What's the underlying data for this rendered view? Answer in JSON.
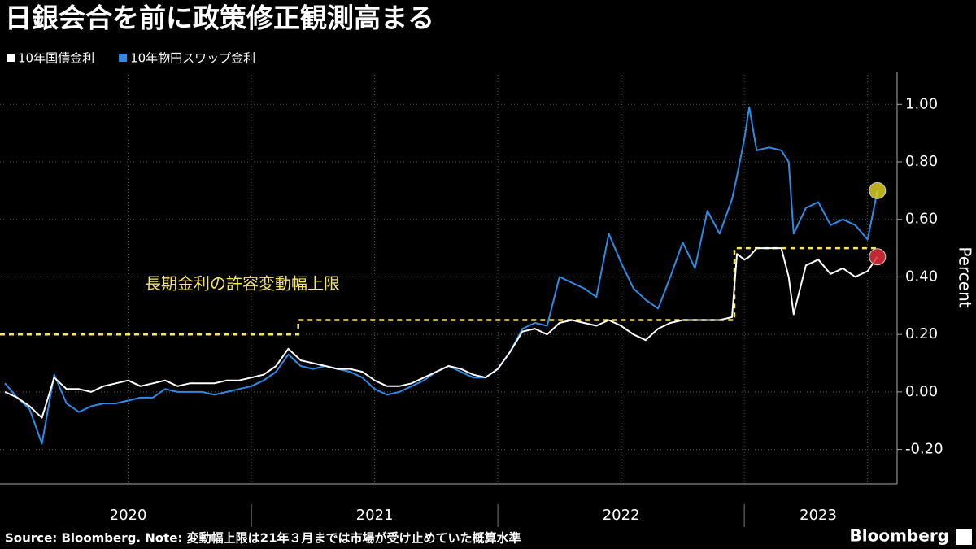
{
  "chart_data": {
    "type": "line",
    "title": "日銀会合を前に政策修正観測高まる",
    "y_label": "Percent",
    "source": "Source: Bloomberg. Note: 変動幅上限は21年３月までは市場が受け止めていた概算水準",
    "brand": "Bloomberg",
    "xlim": [
      2019.98,
      2023.61
    ],
    "ylim": [
      -0.32,
      1.114
    ],
    "xticks": [
      {
        "value": 2020.5,
        "label": "2020"
      },
      {
        "value": 2021.5,
        "label": "2021"
      },
      {
        "value": 2022.5,
        "label": "2022"
      },
      {
        "value": 2023.3,
        "label": "2023"
      }
    ],
    "year_dividers": [
      2021,
      2022,
      2023
    ],
    "xgrid": [
      2020.5,
      2021,
      2021.5,
      2022,
      2022.5,
      2023,
      2023.5
    ],
    "yticks": [
      {
        "value": -0.2,
        "label": "-0.20"
      },
      {
        "value": 0,
        "label": "0.00"
      },
      {
        "value": 0.2,
        "label": "0.20"
      },
      {
        "value": 0.4,
        "label": "0.40"
      },
      {
        "value": 0.6,
        "label": "0.60"
      },
      {
        "value": 0.8,
        "label": "0.80"
      },
      {
        "value": 1,
        "label": "1.00"
      }
    ],
    "grid": true,
    "x": [
      2020,
      2020.05,
      2020.1,
      2020.15,
      2020.2,
      2020.25,
      2020.3,
      2020.35,
      2020.4,
      2020.45,
      2020.5,
      2020.55,
      2020.6,
      2020.65,
      2020.7,
      2020.75,
      2020.8,
      2020.85,
      2020.9,
      2020.95,
      2021,
      2021.05,
      2021.1,
      2021.15,
      2021.2,
      2021.25,
      2021.3,
      2021.35,
      2021.4,
      2021.45,
      2021.5,
      2021.55,
      2021.6,
      2021.65,
      2021.7,
      2021.75,
      2021.8,
      2021.85,
      2021.9,
      2021.95,
      2022,
      2022.05,
      2022.1,
      2022.15,
      2022.2,
      2022.25,
      2022.3,
      2022.35,
      2022.4,
      2022.45,
      2022.5,
      2022.55,
      2022.6,
      2022.65,
      2022.7,
      2022.75,
      2022.8,
      2022.85,
      2022.9,
      2022.95,
      2022.97,
      2023,
      2023.02,
      2023.05,
      2023.1,
      2023.15,
      2023.18,
      2023.2,
      2023.25,
      2023.3,
      2023.35,
      2023.4,
      2023.45,
      2023.5,
      2023.54
    ],
    "series": [
      {
        "name": "10年国債金利",
        "color": "#ffffff",
        "end_marker_color": "#e0303c",
        "values": [
          0,
          -0.02,
          -0.05,
          -0.09,
          0.05,
          0.01,
          0.01,
          0,
          0.02,
          0.03,
          0.04,
          0.02,
          0.03,
          0.04,
          0.02,
          0.03,
          0.03,
          0.03,
          0.04,
          0.04,
          0.05,
          0.06,
          0.09,
          0.15,
          0.11,
          0.1,
          0.09,
          0.08,
          0.08,
          0.07,
          0.04,
          0.02,
          0.02,
          0.03,
          0.05,
          0.07,
          0.09,
          0.08,
          0.06,
          0.05,
          0.08,
          0.14,
          0.21,
          0.22,
          0.2,
          0.24,
          0.25,
          0.24,
          0.23,
          0.25,
          0.23,
          0.2,
          0.18,
          0.22,
          0.24,
          0.25,
          0.25,
          0.25,
          0.25,
          0.26,
          0.48,
          0.46,
          0.47,
          0.5,
          0.5,
          0.5,
          0.4,
          0.27,
          0.44,
          0.46,
          0.41,
          0.43,
          0.4,
          0.42,
          0.47
        ]
      },
      {
        "name": "10年物円スワップ金利",
        "color": "#2f8ae6",
        "end_marker_color": "#d9cf1e",
        "values": [
          0.03,
          -0.02,
          -0.06,
          -0.18,
          0.06,
          -0.04,
          -0.07,
          -0.05,
          -0.04,
          -0.04,
          -0.03,
          -0.02,
          -0.02,
          0.01,
          0,
          0,
          0,
          -0.01,
          0,
          0.01,
          0.02,
          0.04,
          0.07,
          0.13,
          0.09,
          0.08,
          0.09,
          0.08,
          0.07,
          0.05,
          0.01,
          -0.01,
          0,
          0.02,
          0.04,
          0.07,
          0.09,
          0.07,
          0.05,
          0.05,
          0.08,
          0.14,
          0.22,
          0.24,
          0.23,
          0.4,
          0.38,
          0.36,
          0.33,
          0.55,
          0.45,
          0.36,
          0.32,
          0.29,
          0.4,
          0.52,
          0.43,
          0.63,
          0.55,
          0.67,
          0.75,
          0.88,
          0.99,
          0.84,
          0.85,
          0.84,
          0.8,
          0.55,
          0.64,
          0.66,
          0.58,
          0.6,
          0.58,
          0.53,
          0.7
        ]
      }
    ],
    "cap_line": {
      "name": "長期金利の許容変動幅上限",
      "color": "#f5e663",
      "x": [
        2019.98,
        2021.19,
        2021.19,
        2022.96,
        2022.96,
        2023.55
      ],
      "values": [
        0.2,
        0.2,
        0.25,
        0.25,
        0.5,
        0.5
      ]
    }
  }
}
